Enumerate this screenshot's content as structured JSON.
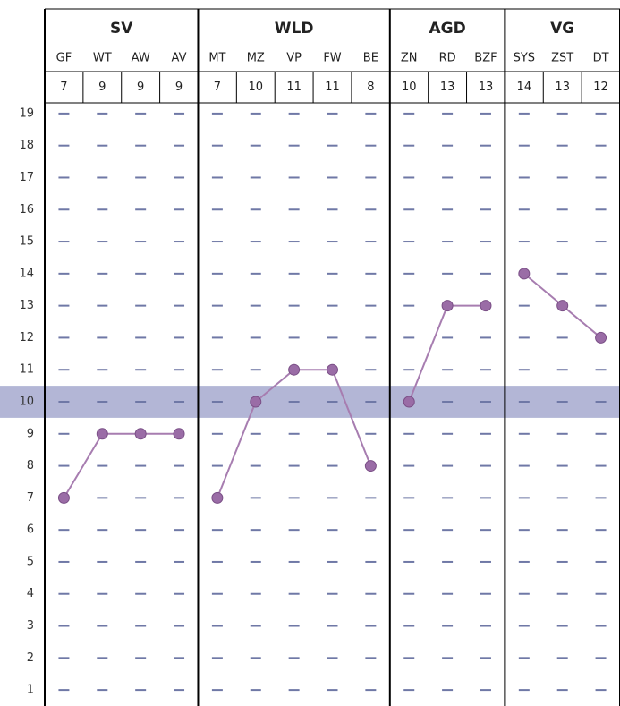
{
  "chart_data": {
    "type": "line",
    "groups": [
      {
        "name": "SV",
        "categories": [
          "GF",
          "WT",
          "AW",
          "AV"
        ],
        "values": [
          7,
          9,
          9,
          9
        ]
      },
      {
        "name": "WLD",
        "categories": [
          "MT",
          "MZ",
          "VP",
          "FW",
          "BE"
        ],
        "values": [
          7,
          10,
          11,
          11,
          8
        ]
      },
      {
        "name": "AGD",
        "categories": [
          "ZN",
          "RD",
          "BZF"
        ],
        "values": [
          10,
          13,
          13
        ]
      },
      {
        "name": "VG",
        "categories": [
          "SYS",
          "ZST",
          "DT"
        ],
        "values": [
          14,
          13,
          12
        ]
      }
    ],
    "ylim": [
      0.5,
      19.5
    ],
    "yticks": [
      1,
      2,
      3,
      4,
      5,
      6,
      7,
      8,
      9,
      10,
      11,
      12,
      13,
      14,
      15,
      16,
      17,
      18,
      19
    ],
    "highlight": 10,
    "highlight_color": "#b3b6d6",
    "line_color": "#a77db0",
    "marker_color": "#9a6ca6",
    "grid_color": "#6f78a6"
  }
}
